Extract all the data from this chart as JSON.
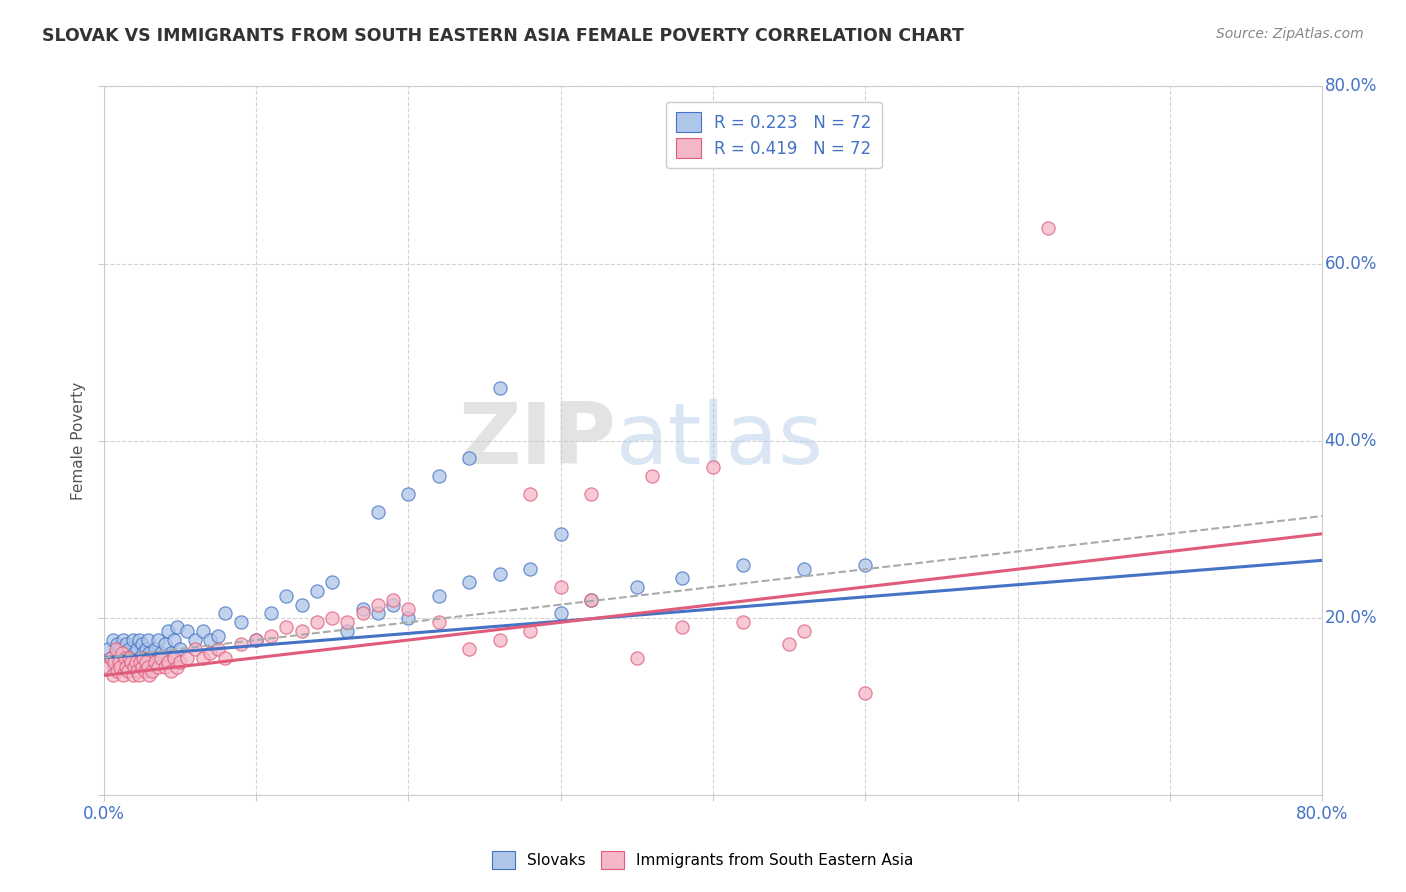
{
  "title": "SLOVAK VS IMMIGRANTS FROM SOUTH EASTERN ASIA FEMALE POVERTY CORRELATION CHART",
  "source": "Source: ZipAtlas.com",
  "ylabel": "Female Poverty",
  "xlim": [
    0.0,
    0.8
  ],
  "ylim": [
    0.0,
    0.8
  ],
  "legend1_label": "R = 0.223   N = 72",
  "legend2_label": "R = 0.419   N = 72",
  "slovaks_color": "#aec6e8",
  "immigrants_color": "#f4b8c8",
  "line_slovak_color": "#4472c4",
  "line_immigrant_color": "#e05c7a",
  "line_dashed_color": "#aaaaaa",
  "background_color": "#ffffff",
  "grid_color": "#c8c8c8",
  "watermark_zip": "ZIP",
  "watermark_atlas": "atlas",
  "slovak_regression": [
    0.155,
    0.265
  ],
  "immigrant_regression": [
    0.135,
    0.295
  ],
  "dashed_regression": [
    0.155,
    0.315
  ],
  "slovaks_x": [
    0.003,
    0.005,
    0.006,
    0.007,
    0.008,
    0.009,
    0.01,
    0.011,
    0.012,
    0.013,
    0.014,
    0.015,
    0.016,
    0.017,
    0.018,
    0.019,
    0.02,
    0.021,
    0.022,
    0.023,
    0.024,
    0.025,
    0.026,
    0.027,
    0.028,
    0.029,
    0.03,
    0.032,
    0.034,
    0.036,
    0.038,
    0.04,
    0.042,
    0.044,
    0.046,
    0.048,
    0.05,
    0.055,
    0.06,
    0.065,
    0.07,
    0.075,
    0.08,
    0.09,
    0.1,
    0.11,
    0.12,
    0.13,
    0.14,
    0.15,
    0.16,
    0.17,
    0.18,
    0.19,
    0.2,
    0.22,
    0.24,
    0.26,
    0.28,
    0.3,
    0.32,
    0.35,
    0.38,
    0.42,
    0.46,
    0.5,
    0.18,
    0.2,
    0.22,
    0.24,
    0.26,
    0.3
  ],
  "slovaks_y": [
    0.165,
    0.155,
    0.175,
    0.145,
    0.16,
    0.17,
    0.155,
    0.165,
    0.15,
    0.175,
    0.16,
    0.17,
    0.155,
    0.165,
    0.145,
    0.175,
    0.16,
    0.15,
    0.165,
    0.175,
    0.155,
    0.17,
    0.16,
    0.15,
    0.165,
    0.175,
    0.16,
    0.155,
    0.165,
    0.175,
    0.16,
    0.17,
    0.185,
    0.16,
    0.175,
    0.19,
    0.165,
    0.185,
    0.175,
    0.185,
    0.175,
    0.18,
    0.205,
    0.195,
    0.175,
    0.205,
    0.225,
    0.215,
    0.23,
    0.24,
    0.185,
    0.21,
    0.205,
    0.215,
    0.2,
    0.225,
    0.24,
    0.25,
    0.255,
    0.205,
    0.22,
    0.235,
    0.245,
    0.26,
    0.255,
    0.26,
    0.32,
    0.34,
    0.36,
    0.38,
    0.46,
    0.295
  ],
  "immigrants_x": [
    0.003,
    0.005,
    0.006,
    0.007,
    0.008,
    0.009,
    0.01,
    0.011,
    0.012,
    0.013,
    0.014,
    0.015,
    0.016,
    0.017,
    0.018,
    0.019,
    0.02,
    0.021,
    0.022,
    0.023,
    0.024,
    0.025,
    0.026,
    0.027,
    0.028,
    0.029,
    0.03,
    0.032,
    0.034,
    0.036,
    0.038,
    0.04,
    0.042,
    0.044,
    0.046,
    0.048,
    0.05,
    0.055,
    0.06,
    0.065,
    0.07,
    0.075,
    0.08,
    0.09,
    0.1,
    0.11,
    0.12,
    0.13,
    0.14,
    0.15,
    0.16,
    0.17,
    0.18,
    0.19,
    0.2,
    0.22,
    0.24,
    0.26,
    0.28,
    0.3,
    0.32,
    0.35,
    0.38,
    0.42,
    0.46,
    0.5,
    0.28,
    0.32,
    0.36,
    0.4,
    0.62,
    0.45
  ],
  "immigrants_y": [
    0.145,
    0.155,
    0.135,
    0.15,
    0.165,
    0.14,
    0.15,
    0.145,
    0.16,
    0.135,
    0.155,
    0.145,
    0.14,
    0.155,
    0.15,
    0.135,
    0.145,
    0.15,
    0.14,
    0.135,
    0.15,
    0.145,
    0.155,
    0.14,
    0.15,
    0.145,
    0.135,
    0.14,
    0.15,
    0.145,
    0.155,
    0.145,
    0.15,
    0.14,
    0.155,
    0.145,
    0.15,
    0.155,
    0.165,
    0.155,
    0.16,
    0.165,
    0.155,
    0.17,
    0.175,
    0.18,
    0.19,
    0.185,
    0.195,
    0.2,
    0.195,
    0.205,
    0.215,
    0.22,
    0.21,
    0.195,
    0.165,
    0.175,
    0.185,
    0.235,
    0.22,
    0.155,
    0.19,
    0.195,
    0.185,
    0.115,
    0.34,
    0.34,
    0.36,
    0.37,
    0.64,
    0.17
  ]
}
